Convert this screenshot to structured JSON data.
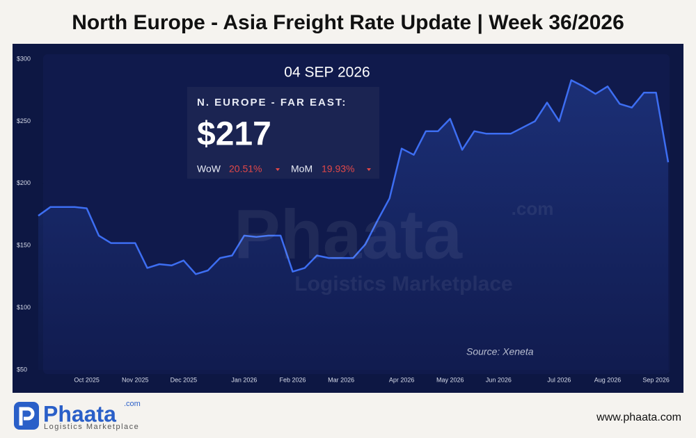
{
  "header": {
    "title": "North Europe - Asia Freight Rate Update | Week 36/2026"
  },
  "info_panel": {
    "date": "04 SEP 2026",
    "route": "N. EUROPE - FAR EAST:",
    "price": "$217",
    "wow_label": "WoW",
    "wow": "20.51%",
    "mom_label": "MoM",
    "mom": "19.93%"
  },
  "watermark": {
    "brand": "Phaata",
    "domain": ".com",
    "tagline": "Logistics Marketplace"
  },
  "source": "Source: Xeneta",
  "footer": {
    "brand": "Phaata",
    "domain": ".com",
    "tagline": "Logistics Marketplace",
    "url": "www.phaata.com"
  },
  "chart_data": {
    "type": "line",
    "color": "#3d6ef2",
    "categories": [
      null,
      null,
      null,
      null,
      "Oct 2025",
      null,
      null,
      null,
      "Nov 2025",
      null,
      null,
      null,
      "Dec 2025",
      null,
      null,
      null,
      null,
      "Jan 2026",
      null,
      null,
      null,
      "Feb 2026",
      null,
      null,
      null,
      "Mar 2026",
      null,
      null,
      null,
      null,
      "Apr 2026",
      null,
      null,
      null,
      "May 2026",
      null,
      null,
      null,
      "Jun 2026",
      null,
      null,
      null,
      null,
      "Jul 2026",
      null,
      null,
      null,
      "Aug 2026",
      null,
      null,
      null,
      "Sep 2026",
      null
    ],
    "values": [
      174,
      181,
      181,
      181,
      180,
      158,
      152,
      152,
      152,
      132,
      135,
      134,
      138,
      127,
      130,
      140,
      142,
      158,
      157,
      158,
      158,
      129,
      132,
      142,
      140,
      140,
      140,
      151,
      170,
      188,
      228,
      223,
      242,
      242,
      252,
      227,
      242,
      240,
      240,
      240,
      245,
      250,
      265,
      250,
      283,
      278,
      272,
      278,
      264,
      261,
      273,
      273,
      217
    ],
    "ylim": [
      50,
      300
    ],
    "yticks": [
      {
        "value": 50,
        "label": "$50"
      },
      {
        "value": 100,
        "label": "$100"
      },
      {
        "value": 150,
        "label": "$150"
      },
      {
        "value": 200,
        "label": "$200"
      },
      {
        "value": 250,
        "label": "$250"
      },
      {
        "value": 300,
        "label": "$300"
      }
    ]
  }
}
